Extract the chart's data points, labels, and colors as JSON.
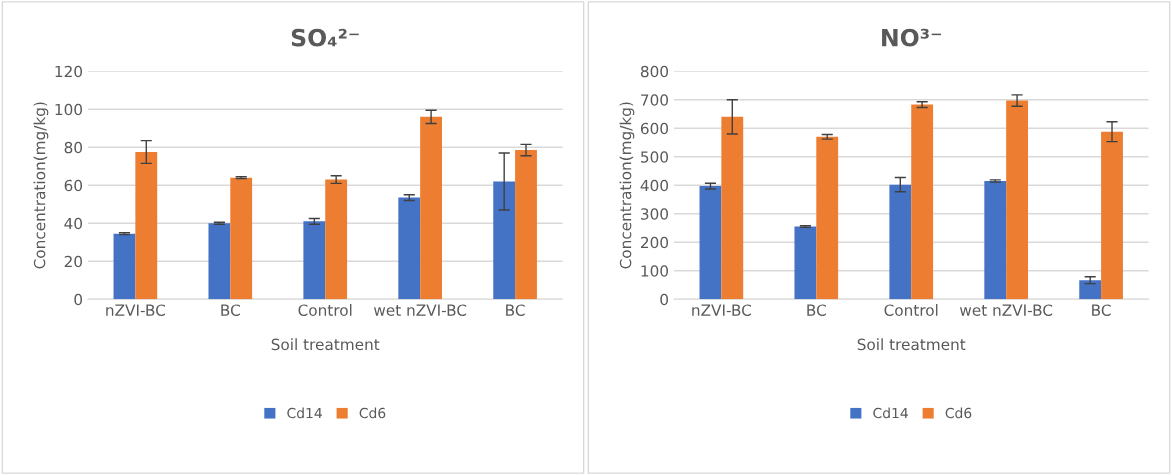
{
  "chart_data": [
    {
      "type": "bar",
      "title": "SO₄²⁻",
      "xlabel": "Soil treatment",
      "ylabel": "Concentration(mg/kg)",
      "categories": [
        "nZVI-BC",
        "BC",
        "Control",
        "wet nZVI-BC",
        "BC"
      ],
      "ylim": [
        0,
        120
      ],
      "yticks": [
        0,
        20,
        40,
        60,
        80,
        100,
        120
      ],
      "grid": "y",
      "legend": "bottom",
      "series": [
        {
          "name": "Cd14",
          "color": "#4472c4",
          "values": [
            34.5,
            40,
            41,
            53.5,
            62
          ],
          "errors": [
            0.5,
            0.5,
            1.5,
            1.5,
            15
          ]
        },
        {
          "name": "Cd6",
          "color": "#ed7d31",
          "values": [
            77.5,
            64,
            63,
            96,
            78.5
          ],
          "errors": [
            6,
            0.5,
            2,
            3.5,
            3
          ]
        }
      ]
    },
    {
      "type": "bar",
      "title": "NO³⁻",
      "xlabel": "Soil treatment",
      "ylabel": "Concentration(mg/kg)",
      "categories": [
        "nZVI-BC",
        "BC",
        "Control",
        "wet nZVI-BC",
        "BC"
      ],
      "ylim": [
        0,
        800
      ],
      "yticks": [
        0,
        100,
        200,
        300,
        400,
        500,
        600,
        700,
        800
      ],
      "grid": "y",
      "legend": "bottom",
      "series": [
        {
          "name": "Cd14",
          "color": "#4472c4",
          "values": [
            397,
            255,
            402,
            415,
            67
          ],
          "errors": [
            10,
            3,
            25,
            4,
            12
          ]
        },
        {
          "name": "Cd6",
          "color": "#ed7d31",
          "values": [
            640,
            570,
            683,
            697,
            588
          ],
          "errors": [
            60,
            8,
            10,
            20,
            35
          ]
        }
      ]
    }
  ]
}
